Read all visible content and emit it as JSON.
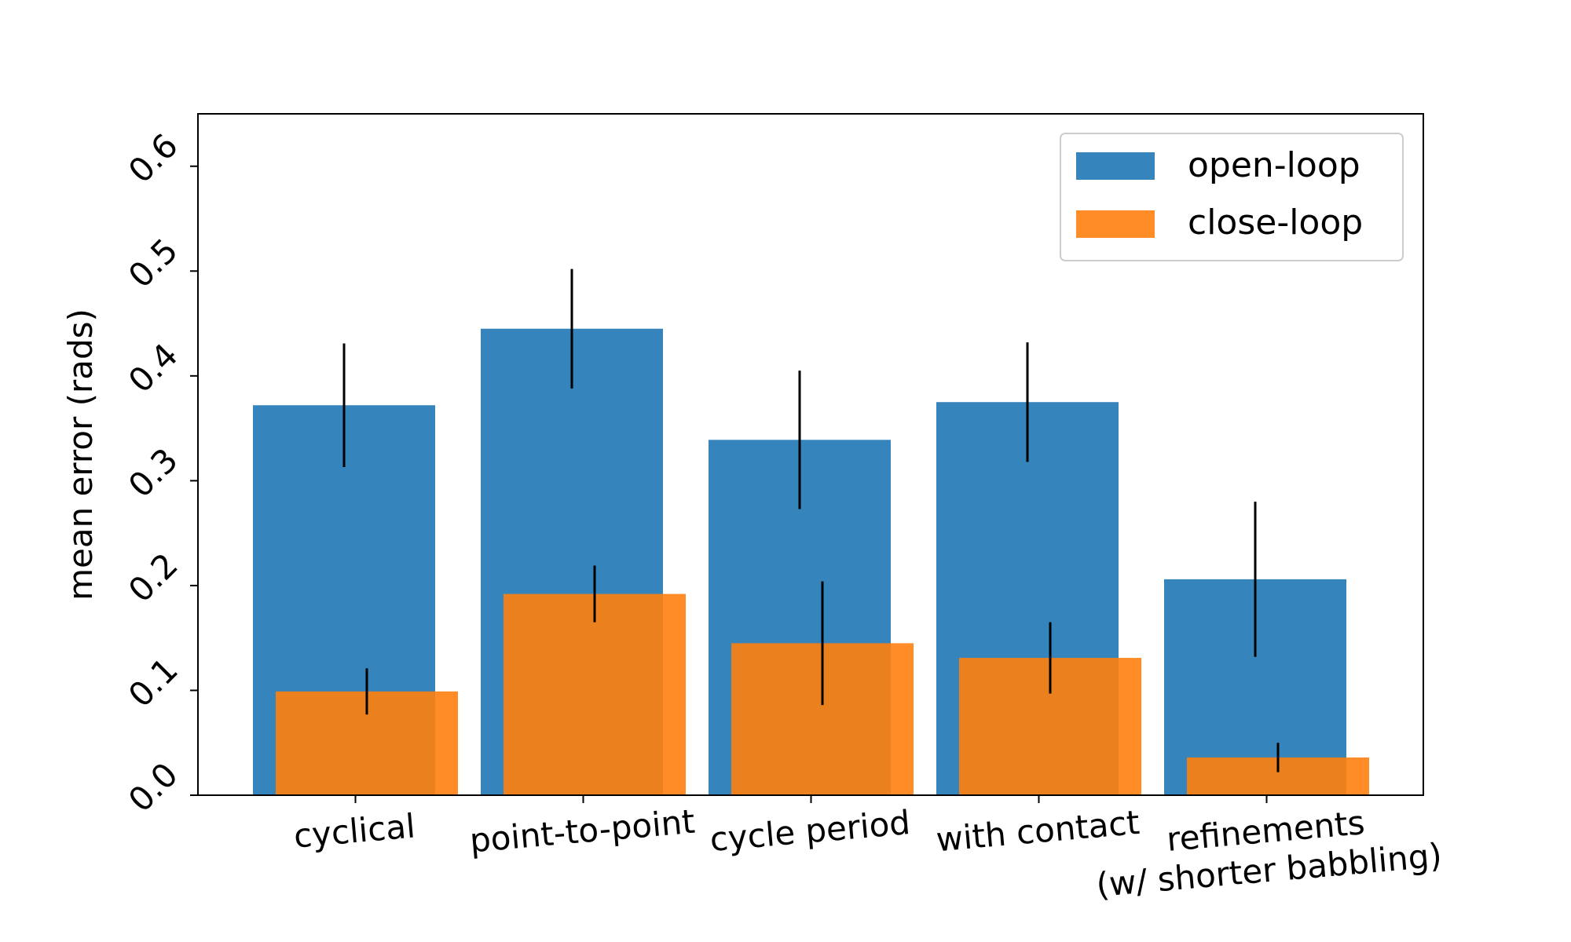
{
  "chart_data": {
    "type": "bar",
    "title": "",
    "xlabel": "",
    "ylabel": "mean error (rads)",
    "ylim": [
      0,
      0.65
    ],
    "yticks": [
      "0.0",
      "0.1",
      "0.2",
      "0.3",
      "0.4",
      "0.5",
      "0.6"
    ],
    "categories": [
      [
        "cyclical"
      ],
      [
        "point-to-point"
      ],
      [
        "cycle period"
      ],
      [
        "with contact"
      ],
      [
        "refinements",
        "(w/ shorter babbling)"
      ]
    ],
    "series": [
      {
        "name": "open-loop",
        "color": "#1f77b4",
        "values": [
          0.372,
          0.445,
          0.339,
          0.375,
          0.206
        ],
        "errors": [
          0.059,
          0.057,
          0.066,
          0.057,
          0.074
        ]
      },
      {
        "name": "close-loop",
        "color": "#ff7f0e",
        "values": [
          0.099,
          0.192,
          0.145,
          0.131,
          0.036
        ],
        "errors": [
          0.022,
          0.027,
          0.059,
          0.034,
          0.014
        ]
      }
    ],
    "legend_position": "top-right",
    "grid": false
  }
}
